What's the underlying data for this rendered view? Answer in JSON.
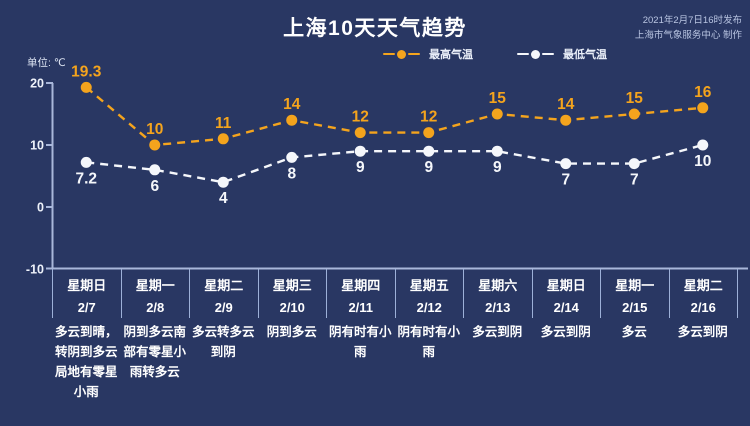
{
  "header": {
    "title": "上海10天天气趋势",
    "publish_line1": "2021年2月7日16时发布",
    "publish_line2": "上海市气象服务中心 制作",
    "unit_label": "单位: ℃"
  },
  "colors": {
    "background": "#293763",
    "high_series": "#f4a41d",
    "low_series": "#f5f7fb",
    "axis": "#a9b7da",
    "text": "#ffffff"
  },
  "chart_data": {
    "type": "line",
    "title": "上海10天天气趋势",
    "unit": "℃",
    "grid": false,
    "legend_position": "top",
    "yticks": [
      20,
      10,
      0,
      -10
    ],
    "ylim": [
      -10,
      25
    ],
    "categories": [
      "2/7",
      "2/8",
      "2/9",
      "2/10",
      "2/11",
      "2/12",
      "2/13",
      "2/14",
      "2/15",
      "2/16"
    ],
    "series": [
      {
        "name": "最高气温",
        "color": "#f4a41d",
        "values": [
          19.3,
          10,
          11,
          14,
          12,
          12,
          15,
          14,
          15,
          16
        ]
      },
      {
        "name": "最低气温",
        "color": "#f5f7fb",
        "values": [
          7.2,
          6,
          4,
          8,
          9,
          9,
          9,
          7,
          7,
          10
        ]
      }
    ]
  },
  "days": [
    {
      "day": "星期日",
      "date": "2/7",
      "weather": "多云到晴，\n转阴到多云\n局地有零星\n小雨"
    },
    {
      "day": "星期一",
      "date": "2/8",
      "weather": "阴到多云南\n部有零星小\n雨转多云"
    },
    {
      "day": "星期二",
      "date": "2/9",
      "weather": "多云转多云\n到阴"
    },
    {
      "day": "星期三",
      "date": "2/10",
      "weather": "阴到多云"
    },
    {
      "day": "星期四",
      "date": "2/11",
      "weather": "阴有时有小\n雨"
    },
    {
      "day": "星期五",
      "date": "2/12",
      "weather": "阴有时有小\n雨"
    },
    {
      "day": "星期六",
      "date": "2/13",
      "weather": "多云到阴"
    },
    {
      "day": "星期日",
      "date": "2/14",
      "weather": "多云到阴"
    },
    {
      "day": "星期一",
      "date": "2/15",
      "weather": "多云"
    },
    {
      "day": "星期二",
      "date": "2/16",
      "weather": "多云到阴"
    }
  ]
}
